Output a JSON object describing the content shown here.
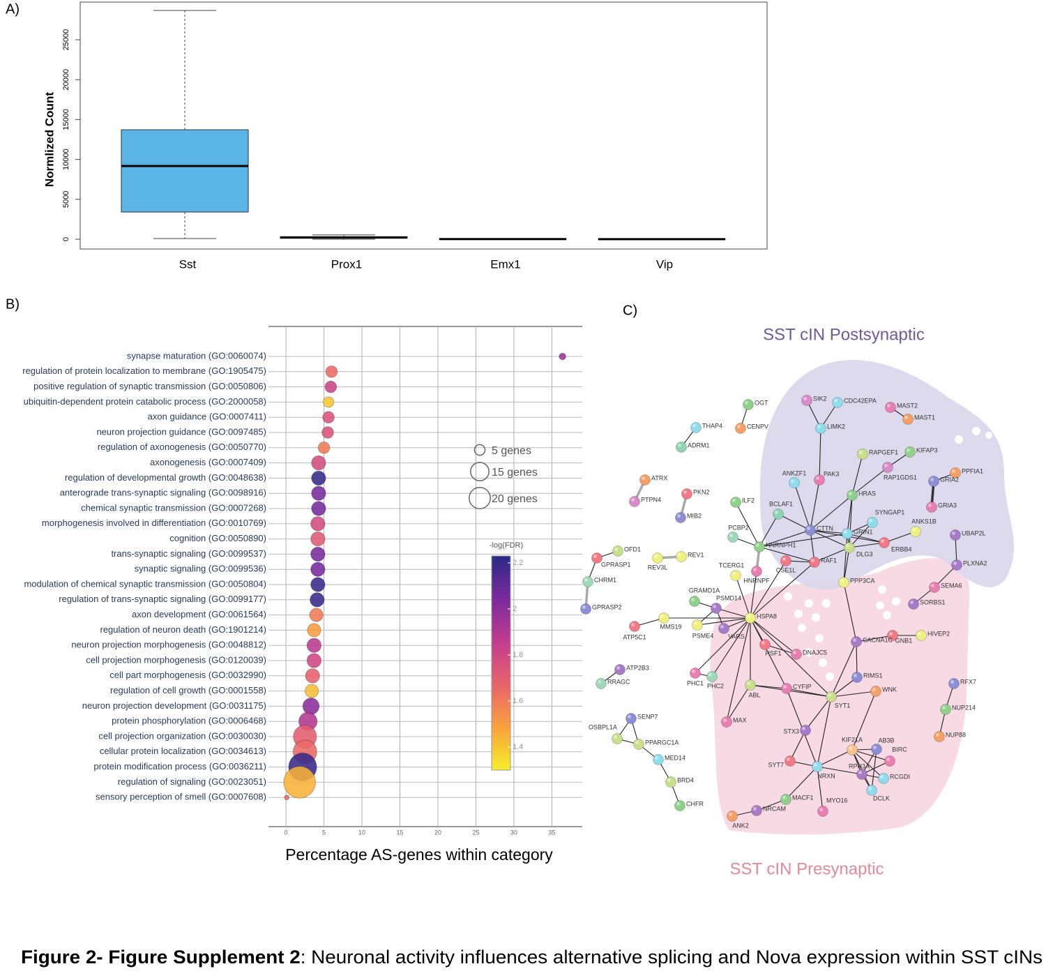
{
  "chart_data": [
    {
      "type": "box",
      "panel_label": "A)",
      "ylabel": "Normlized Count",
      "categories": [
        "Sst",
        "Prox1",
        "Emx1",
        "Vip"
      ],
      "boxes": [
        {
          "min": 87,
          "q1": 3409,
          "median": 9178,
          "q3": 13724,
          "max": 28671
        },
        {
          "min": 0,
          "q1": 120,
          "median": 220,
          "q3": 330,
          "max": 550
        },
        {
          "min": 0,
          "q1": 5,
          "median": 20,
          "q3": 40,
          "max": 80
        },
        {
          "min": 0,
          "q1": 5,
          "median": 15,
          "q3": 35,
          "max": 70
        }
      ],
      "colors": [
        "#5ab4e6",
        "#3f9e7a",
        "#4a4a8a",
        "#4a4a8a"
      ],
      "ylim": [
        -1224,
        29720
      ],
      "yticks": [
        0,
        5000,
        10000,
        15000,
        20000,
        25000
      ]
    },
    {
      "type": "bubble",
      "panel_label": "B)",
      "xlabel": "Percentage AS-genes within category",
      "categories": [
        "synapse maturation (GO:0060074)",
        "regulation of protein localization to membrane (GO:1905475)",
        "positive regulation of synaptic transmission (GO:0050806)",
        "ubiquitin-dependent protein catabolic process (GO:2000058)",
        "axon guidance (GO:0007411)",
        "neuron projection guidance (GO:0097485)",
        "regulation of axonogenesis (GO:0050770)",
        "axonogenesis (GO:0007409)",
        "regulation of developmental growth (GO:0048638)",
        "anterograde trans-synaptic signaling (GO:0098916)",
        "chemical synaptic transmission (GO:0007268)",
        "morphogenesis involved in differentiation (GO:0010769)",
        "cognition (GO:0050890)",
        "trans-synaptic signaling (GO:0099537)",
        "synaptic signaling (GO:0099536)",
        "modulation of chemical synaptic transmission (GO:0050804)",
        "regulation of trans-synaptic signaling (GO:0099177)",
        "axon development (GO:0061564)",
        "regulation of neuron death (GO:1901214)",
        "neuron projection morphogenesis (GO:0048812)",
        "cell projection morphogenesis (GO:0120039)",
        "cell part morphogenesis (GO:0032990)",
        "regulation of cell growth (GO:0001558)",
        "neuron projection development (GO:0031175)",
        "protein phosphorylation (GO:0006468)",
        "cell projection organization (GO:0030030)",
        "cellular protein localization (GO:0034613)",
        "protein modification process (GO:0036211)",
        "regulation of signaling (GO:0023051)",
        "sensory perception of smell (GO:0007608)"
      ],
      "values": [
        36.4,
        6.0,
        5.9,
        5.6,
        5.6,
        5.5,
        5.0,
        4.3,
        4.3,
        4.3,
        4.3,
        4.2,
        4.2,
        4.2,
        4.2,
        4.2,
        4.1,
        4.0,
        3.7,
        3.7,
        3.7,
        3.5,
        3.4,
        3.3,
        2.9,
        2.5,
        2.5,
        2.2,
        1.8,
        0.1
      ],
      "sizes": [
        2,
        6,
        6,
        5,
        6,
        6,
        6,
        9,
        9,
        9,
        9,
        9,
        9,
        9,
        9,
        9,
        9,
        8,
        8,
        9,
        9,
        9,
        8,
        12,
        15,
        24,
        25,
        35,
        45,
        1
      ],
      "color_values": [
        1.95,
        1.65,
        1.82,
        1.4,
        1.75,
        1.75,
        1.6,
        1.78,
        2.2,
        2.05,
        2.05,
        1.78,
        1.72,
        2.05,
        2.05,
        2.2,
        2.2,
        1.6,
        1.5,
        1.88,
        1.8,
        1.68,
        1.42,
        2.0,
        1.9,
        1.7,
        1.65,
        2.2,
        1.45,
        1.65
      ],
      "xlim": [
        -2.3,
        39
      ],
      "xticks": [
        0,
        5,
        10,
        15,
        20,
        25,
        30,
        35
      ],
      "grid": true,
      "size_legend": [
        {
          "value": 5,
          "label": "5 genes"
        },
        {
          "value": 15,
          "label": "15 genes"
        },
        {
          "value": 20,
          "label": "20 genes"
        }
      ],
      "color_title": "-log(FDR)",
      "clim": [
        1.3,
        2.23
      ],
      "cticks": [
        1.4,
        1.6,
        1.8,
        2,
        2.2
      ],
      "colorscale": [
        "#f5ee2a",
        "#f9a13c",
        "#e8636a",
        "#c23c8e",
        "#7a2a9e",
        "#2a2a86"
      ]
    }
  ],
  "network": {
    "panel_label": "C)",
    "post_title": "SST cIN Postsynaptic",
    "pre_title": "SST cIN Presynaptic",
    "nodes": [
      "OGT",
      "CENPV",
      "THAP4",
      "ADRM1",
      "SIK2",
      "CDC42EPA",
      "MAST2",
      "MAST1",
      "LIMK2",
      "KIFAP3",
      "RAPGEF1",
      "RAP1GDS1",
      "PPFIA1",
      "GRIA2",
      "GRIA3",
      "ANKZF1",
      "PAK3",
      "HRAS",
      "ATRX",
      "PTPN4",
      "PKN2",
      "MIB2",
      "ILF2",
      "BCLAF1",
      "SYNGAP1",
      "ANKS1B",
      "UBAP2L",
      "CTTN",
      "GRIN1",
      "PCBP2",
      "HNRNPH1",
      "ERBB4",
      "DLG3",
      "OFD1",
      "GPRASP1",
      "REV1",
      "REV3L",
      "RAF1",
      "CSE1L",
      "PLXNA2",
      "CHRM1",
      "TCERG1",
      "HNRNPF",
      "PPP3CA",
      "SEMA6",
      "GRAMD1A",
      "PSMD14",
      "GPRASP2",
      "SORBS1",
      "HSPA8",
      "ATP5C1",
      "MMS19",
      "PSME4",
      "VARS",
      "GNB1",
      "HIVEP2",
      "CACNA1C",
      "HSF1",
      "DNAJC5",
      "ATP2B3",
      "RRAGC",
      "PHC1",
      "PHC2",
      "RIMS1",
      "RFX7",
      "ABL",
      "CYFIP",
      "WNK",
      "SYT1",
      "NUP214",
      "SENP7",
      "OSBPL1A",
      "PPARGC1A",
      "MAX",
      "STX3",
      "NUP88",
      "KIF21A",
      "AB3B",
      "BIRC",
      "MED14",
      "SYT7",
      "NRXN",
      "RPH3A",
      "RCGDI",
      "BRD4",
      "DCLK",
      "MACF1",
      "MYO16",
      "CHFR",
      "NRCAM",
      "ANK2"
    ]
  },
  "caption": {
    "bold": "Figure 2- Figure Supplement 2",
    "text": ": Neuronal activity influences alternative splicing and Nova expression within SST cINs"
  }
}
